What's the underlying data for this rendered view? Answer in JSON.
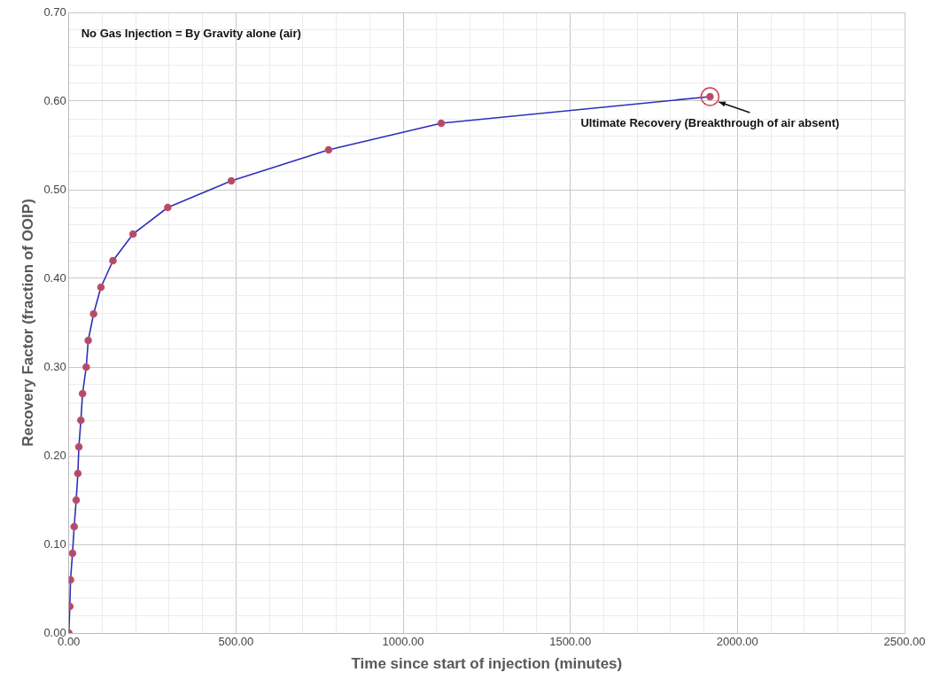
{
  "chart_data": {
    "type": "line",
    "xlabel": "Time since start of injection (minutes)",
    "ylabel": "Recovery Factor (fraction of OOIP)",
    "annotations": [
      "No Gas Injection = By Gravity alone (air)",
      {
        "text": "Ultimate Recovery (Breakthrough of air absent)",
        "x": 1918,
        "y": 0.605
      }
    ],
    "series": [
      {
        "color": "#2e2eb8",
        "x": [
          0,
          3,
          5,
          11,
          16,
          22,
          27,
          30,
          36,
          41,
          52,
          58,
          74,
          96,
          132,
          192,
          296,
          486,
          777,
          1114,
          1918
        ],
        "values": [
          0,
          0.03,
          0.06,
          0.09,
          0.12,
          0.15,
          0.18,
          0.21,
          0.24,
          0.27,
          0.3,
          0.33,
          0.36,
          0.39,
          0.42,
          0.45,
          0.48,
          0.51,
          0.545,
          0.575,
          0.605
        ]
      }
    ],
    "xlim": [
      0,
      2500
    ],
    "ylim": [
      0,
      0.7
    ],
    "xticks": [
      {
        "value": 0,
        "label": "0.00"
      },
      {
        "value": 100,
        "label": null
      },
      {
        "value": 200,
        "label": null
      },
      {
        "value": 300,
        "label": null
      },
      {
        "value": 400,
        "label": null
      },
      {
        "value": 500,
        "label": "500.00"
      },
      {
        "value": 600,
        "label": null
      },
      {
        "value": 700,
        "label": null
      },
      {
        "value": 800,
        "label": null
      },
      {
        "value": 900,
        "label": null
      },
      {
        "value": 1000,
        "label": "1000.00"
      },
      {
        "value": 1100,
        "label": null
      },
      {
        "value": 1200,
        "label": null
      },
      {
        "value": 1300,
        "label": null
      },
      {
        "value": 1400,
        "label": null
      },
      {
        "value": 1500,
        "label": "1500.00"
      },
      {
        "value": 1600,
        "label": null
      },
      {
        "value": 1700,
        "label": null
      },
      {
        "value": 1800,
        "label": null
      },
      {
        "value": 1900,
        "label": null
      },
      {
        "value": 2000,
        "label": "2000.00"
      },
      {
        "value": 2100,
        "label": null
      },
      {
        "value": 2200,
        "label": null
      },
      {
        "value": 2300,
        "label": null
      },
      {
        "value": 2400,
        "label": null
      },
      {
        "value": 2500,
        "label": "2500.00"
      }
    ],
    "yticks": [
      {
        "value": 0,
        "label": "0.00"
      },
      {
        "value": 0.02,
        "label": null
      },
      {
        "value": 0.04,
        "label": null
      },
      {
        "value": 0.06,
        "label": null
      },
      {
        "value": 0.08,
        "label": null
      },
      {
        "value": 0.1,
        "label": "0.10"
      },
      {
        "value": 0.12,
        "label": null
      },
      {
        "value": 0.14,
        "label": null
      },
      {
        "value": 0.16,
        "label": null
      },
      {
        "value": 0.18,
        "label": null
      },
      {
        "value": 0.2,
        "label": "0.20"
      },
      {
        "value": 0.22,
        "label": null
      },
      {
        "value": 0.24,
        "label": null
      },
      {
        "value": 0.26,
        "label": null
      },
      {
        "value": 0.28,
        "label": null
      },
      {
        "value": 0.3,
        "label": "0.30"
      },
      {
        "value": 0.32,
        "label": null
      },
      {
        "value": 0.34,
        "label": null
      },
      {
        "value": 0.36,
        "label": null
      },
      {
        "value": 0.38,
        "label": null
      },
      {
        "value": 0.4,
        "label": "0.40"
      },
      {
        "value": 0.42,
        "label": null
      },
      {
        "value": 0.44,
        "label": null
      },
      {
        "value": 0.46,
        "label": null
      },
      {
        "value": 0.48,
        "label": null
      },
      {
        "value": 0.5,
        "label": "0.50"
      },
      {
        "value": 0.52,
        "label": null
      },
      {
        "value": 0.54,
        "label": null
      },
      {
        "value": 0.56,
        "label": null
      },
      {
        "value": 0.58,
        "label": null
      },
      {
        "value": 0.6,
        "label": "0.60"
      },
      {
        "value": 0.62,
        "label": null
      },
      {
        "value": 0.64,
        "label": null
      },
      {
        "value": 0.66,
        "label": null
      },
      {
        "value": 0.68,
        "label": null
      },
      {
        "value": 0.7,
        "label": "0.70"
      }
    ],
    "grid": true,
    "legend": false,
    "marker": "circle",
    "line_style": "solid"
  }
}
